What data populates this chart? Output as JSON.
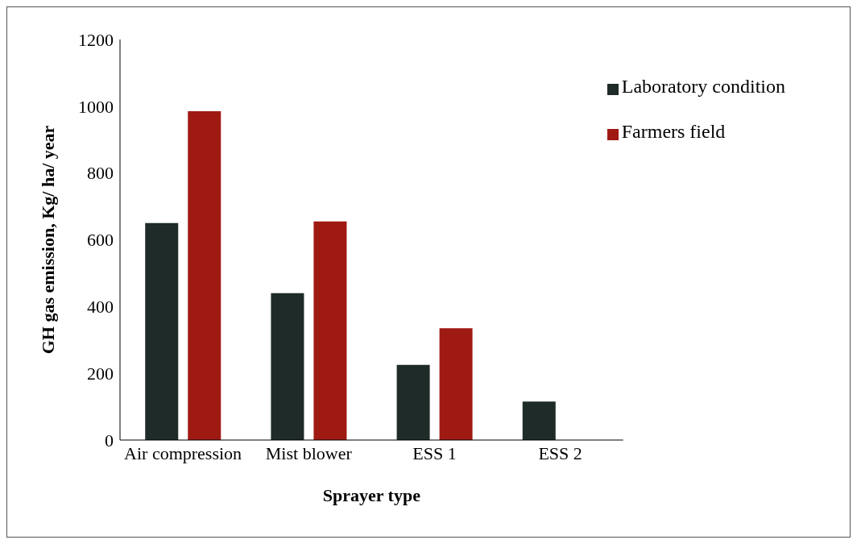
{
  "chart_data": {
    "type": "bar",
    "xlabel": "Sprayer type",
    "ylabel": "GH gas emission, Kg/ ha/ year",
    "categories": [
      "Air compression",
      "Mist blower",
      "ESS 1",
      "ESS 2"
    ],
    "series": [
      {
        "name": "Laboratory condition",
        "color": "#1f2b28",
        "values": [
          650,
          440,
          225,
          115
        ]
      },
      {
        "name": "Farmers field",
        "color": "#a01a14",
        "values": [
          985,
          655,
          335,
          null
        ]
      }
    ],
    "ylim": [
      0,
      1200
    ],
    "yticks": [
      0,
      200,
      400,
      600,
      800,
      1000,
      1200
    ],
    "grid": false,
    "legend": "top right"
  }
}
